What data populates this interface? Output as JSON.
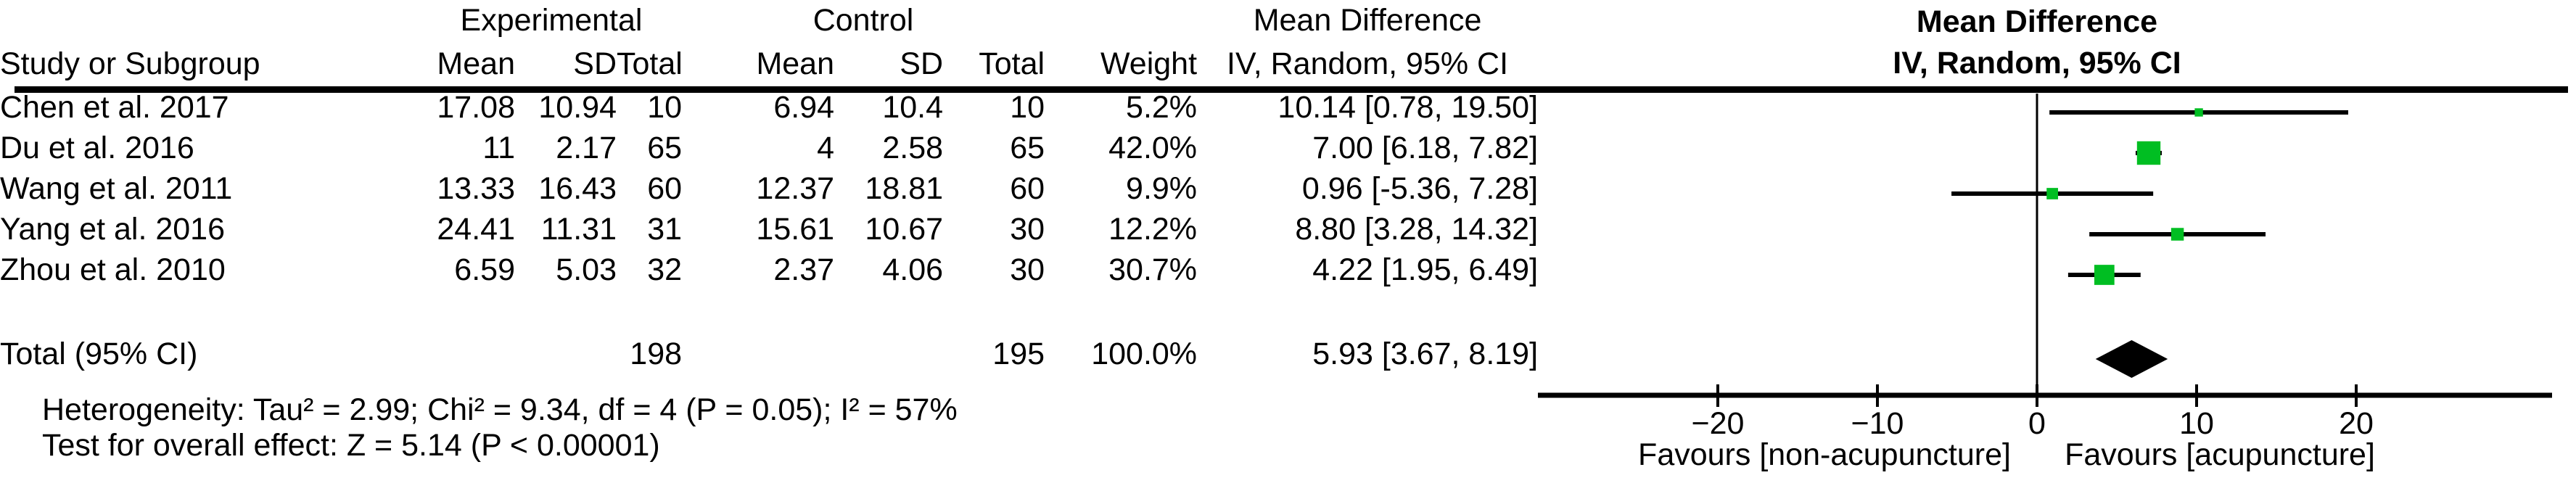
{
  "table": {
    "headers": {
      "group_experimental": "Experimental",
      "group_control": "Control",
      "group_mean_difference": "Mean Difference",
      "study": "Study or Subgroup",
      "mean": "Mean",
      "sd": "SD",
      "total": "Total",
      "weight": "Weight",
      "ci_method": "IV, Random, 95% CI"
    },
    "studies": [
      {
        "name": "Chen et al. 2017",
        "exp_mean": "17.08",
        "exp_sd": "10.94",
        "exp_total": "10",
        "ctl_mean": "6.94",
        "ctl_sd": "10.4",
        "ctl_total": "10",
        "weight": "5.2%",
        "ci_text": "10.14 [0.78, 19.50]"
      },
      {
        "name": "Du et al. 2016",
        "exp_mean": "11",
        "exp_sd": "2.17",
        "exp_total": "65",
        "ctl_mean": "4",
        "ctl_sd": "2.58",
        "ctl_total": "65",
        "weight": "42.0%",
        "ci_text": "7.00 [6.18, 7.82]"
      },
      {
        "name": "Wang et al. 2011",
        "exp_mean": "13.33",
        "exp_sd": "16.43",
        "exp_total": "60",
        "ctl_mean": "12.37",
        "ctl_sd": "18.81",
        "ctl_total": "60",
        "weight": "9.9%",
        "ci_text": "0.96 [-5.36, 7.28]"
      },
      {
        "name": "Yang et al. 2016",
        "exp_mean": "24.41",
        "exp_sd": "11.31",
        "exp_total": "31",
        "ctl_mean": "15.61",
        "ctl_sd": "10.67",
        "ctl_total": "30",
        "weight": "12.2%",
        "ci_text": "8.80 [3.28, 14.32]"
      },
      {
        "name": "Zhou et al. 2010",
        "exp_mean": "6.59",
        "exp_sd": "5.03",
        "exp_total": "32",
        "ctl_mean": "2.37",
        "ctl_sd": "4.06",
        "ctl_total": "30",
        "weight": "30.7%",
        "ci_text": "4.22 [1.95, 6.49]"
      }
    ],
    "total_row": {
      "label": "Total (95% CI)",
      "exp_total": "198",
      "ctl_total": "195",
      "weight": "100.0%",
      "ci_text": "5.93 [3.67, 8.19]"
    },
    "footnotes": {
      "heterogeneity": "Heterogeneity: Tau² = 2.99; Chi² = 9.34, df = 4 (P = 0.05); I² = 57%",
      "overall_effect": "Test for overall effect: Z = 5.14 (P < 0.00001)"
    }
  },
  "plot": {
    "title_line1": "Mean Difference",
    "title_line2": "IV, Random, 95% CI",
    "favours_left": "Favours [non-acupuncture]",
    "favours_right": "Favours [acupuncture]"
  },
  "chart_data": {
    "type": "forest",
    "effect_measure": "Mean Difference — IV, Random, 95% CI",
    "studies": [
      {
        "name": "Chen et al. 2017",
        "md": 10.14,
        "ci_low": 0.78,
        "ci_high": 19.5,
        "weight_pct": 5.2
      },
      {
        "name": "Du et al. 2016",
        "md": 7.0,
        "ci_low": 6.18,
        "ci_high": 7.82,
        "weight_pct": 42.0
      },
      {
        "name": "Wang et al. 2011",
        "md": 0.96,
        "ci_low": -5.36,
        "ci_high": 7.28,
        "weight_pct": 9.9
      },
      {
        "name": "Yang et al. 2016",
        "md": 8.8,
        "ci_low": 3.28,
        "ci_high": 14.32,
        "weight_pct": 12.2
      },
      {
        "name": "Zhou et al. 2010",
        "md": 4.22,
        "ci_low": 1.95,
        "ci_high": 6.49,
        "weight_pct": 30.7
      }
    ],
    "total": {
      "md": 5.93,
      "ci_low": 3.67,
      "ci_high": 8.19,
      "weight_pct": 100.0
    },
    "axis": {
      "ticks": [
        -20,
        -10,
        0,
        10,
        20
      ],
      "xmin": -31.3,
      "xmax": 32.3,
      "zero_line": true
    },
    "legend": {
      "left": "Favours [non-acupuncture]",
      "right": "Favours [acupuncture]"
    },
    "colors": {
      "marker": "#00BE22",
      "summary_diamond": "#000000",
      "ci_line": "#000000"
    }
  }
}
